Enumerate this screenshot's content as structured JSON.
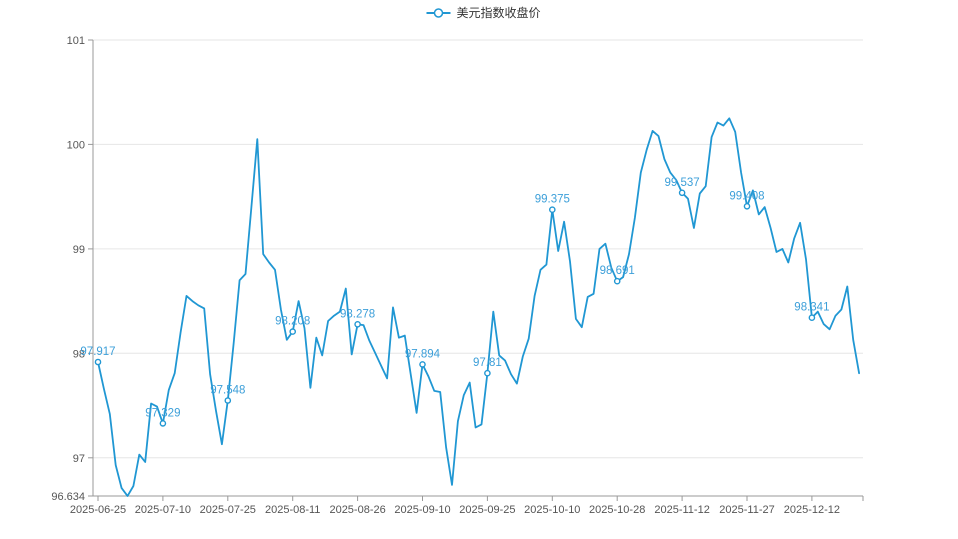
{
  "chart_data": {
    "type": "line",
    "title": "",
    "legend_label": "美元指数收盘价",
    "legend_position": "top",
    "grid": true,
    "ylim": [
      96.634,
      101
    ],
    "y_tick_values": [
      96.634,
      97,
      98,
      99,
      100,
      101
    ],
    "y_tick_labels": [
      "96.634",
      "97",
      "98",
      "99",
      "100",
      "101"
    ],
    "x_tick_labels": [
      "2025-06-25",
      "2025-07-10",
      "2025-07-25",
      "2025-08-11",
      "2025-08-26",
      "2025-09-10",
      "2025-09-25",
      "2025-10-10",
      "2025-10-28",
      "2025-11-12",
      "2025-11-27",
      "2025-12-12"
    ],
    "x_tick_indices": [
      0,
      11,
      22,
      33,
      44,
      55,
      66,
      77,
      88,
      99,
      110,
      121
    ],
    "series": [
      {
        "name": "美元指数收盘价",
        "values": [
          97.917,
          97.66,
          97.42,
          96.93,
          96.71,
          96.634,
          96.73,
          97.03,
          96.96,
          97.52,
          97.49,
          97.329,
          97.65,
          97.81,
          98.2,
          98.55,
          98.5,
          98.46,
          98.43,
          97.8,
          97.45,
          97.13,
          97.548,
          98.1,
          98.7,
          98.76,
          99.4,
          100.05,
          98.95,
          98.87,
          98.8,
          98.42,
          98.13,
          98.208,
          98.5,
          98.24,
          97.67,
          98.15,
          97.98,
          98.31,
          98.36,
          98.4,
          98.62,
          97.99,
          98.278,
          98.27,
          98.12,
          98.0,
          97.88,
          97.76,
          98.44,
          98.15,
          98.17,
          97.8,
          97.43,
          97.894,
          97.78,
          97.64,
          97.63,
          97.1,
          96.74,
          97.35,
          97.6,
          97.72,
          97.29,
          97.32,
          97.81,
          98.4,
          97.98,
          97.93,
          97.8,
          97.71,
          97.97,
          98.14,
          98.55,
          98.8,
          98.85,
          99.375,
          98.98,
          99.26,
          98.88,
          98.33,
          98.25,
          98.54,
          98.57,
          99.0,
          99.05,
          98.82,
          98.691,
          98.73,
          98.95,
          99.3,
          99.73,
          99.95,
          100.13,
          100.08,
          99.86,
          99.73,
          99.66,
          99.537,
          99.48,
          99.2,
          99.53,
          99.6,
          100.07,
          100.21,
          100.18,
          100.25,
          100.12,
          99.73,
          99.408,
          99.56,
          99.33,
          99.4,
          99.2,
          98.97,
          99.0,
          98.87,
          99.1,
          99.25,
          98.9,
          98.341,
          98.4,
          98.28,
          98.23,
          98.36,
          98.42,
          98.64,
          98.13,
          97.81
        ]
      }
    ],
    "marked_points": [
      {
        "index": 0,
        "label": "97.917"
      },
      {
        "index": 11,
        "label": "97.329"
      },
      {
        "index": 22,
        "label": "97.548"
      },
      {
        "index": 33,
        "label": "98.208"
      },
      {
        "index": 44,
        "label": "98.278"
      },
      {
        "index": 55,
        "label": "97.894"
      },
      {
        "index": 66,
        "label": "97.81"
      },
      {
        "index": 77,
        "label": "99.375"
      },
      {
        "index": 88,
        "label": "98.691"
      },
      {
        "index": 99,
        "label": "99.537"
      },
      {
        "index": 110,
        "label": "99.408"
      },
      {
        "index": 121,
        "label": "98.341"
      }
    ],
    "colors": {
      "line": "#2097d3",
      "point_label": "#3c9fd9",
      "axis": "#999999",
      "grid": "#e6e6e6",
      "tick_text": "#555555",
      "legend_text": "#333333"
    }
  }
}
